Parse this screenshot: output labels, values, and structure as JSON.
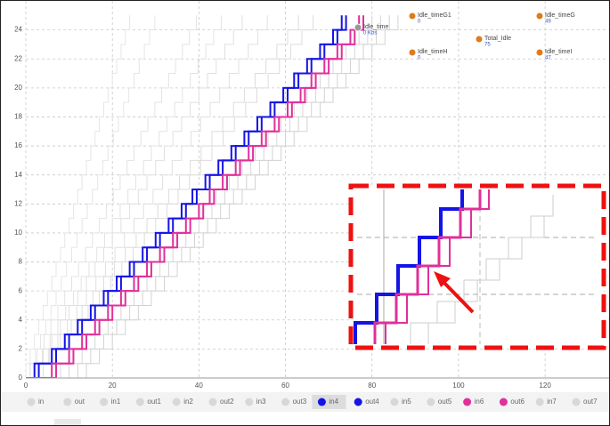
{
  "chart_data": {
    "type": "step",
    "levels": [
      1,
      2,
      3,
      4,
      5,
      6,
      7,
      8,
      9,
      10,
      11,
      12,
      13,
      14,
      15,
      16,
      17,
      18,
      19,
      20,
      21,
      22,
      23,
      24,
      25
    ],
    "xlim": [
      0,
      135
    ],
    "ylim": [
      0,
      26
    ],
    "xticks": [
      0,
      20,
      40,
      60,
      80,
      100,
      120
    ],
    "yticks": [
      0,
      2,
      4,
      6,
      8,
      10,
      12,
      14,
      16,
      18,
      20,
      22,
      24
    ],
    "grid": true,
    "annotations": [
      {
        "label": "Idle_time",
        "value": "0 Kbs"
      },
      {
        "label": "Idle_timeG1",
        "value": "0"
      },
      {
        "label": "Idle_timeG",
        "value": "49"
      },
      {
        "label": "Total_Idle",
        "value": "75"
      },
      {
        "label": "Idle_timeH",
        "value": "0"
      },
      {
        "label": "Idle_timeI",
        "value": "47"
      }
    ],
    "series": [
      {
        "name": "in",
        "color": "#e6e6e6",
        "x": [
          0,
          1,
          2,
          3,
          4,
          5,
          6,
          7,
          8,
          9,
          10,
          11,
          12,
          13,
          14,
          15,
          16,
          17,
          18,
          19,
          20,
          21,
          22,
          23,
          24
        ]
      },
      {
        "name": "out",
        "color": "#e6e6e6",
        "x": [
          1,
          2.2,
          3.4,
          4.6,
          5.8,
          7,
          8.2,
          9.4,
          10.6,
          11.8,
          13,
          14.2,
          15.4,
          16.6,
          17.8,
          19,
          20.2,
          21.4,
          22.6,
          23.8,
          25,
          26.2,
          27.4,
          28.6,
          29.8
        ]
      },
      {
        "name": "in1",
        "color": "#e3e3e3",
        "x": [
          1,
          2.6,
          4.2,
          5.8,
          7.4,
          9,
          10.6,
          12.2,
          13.8,
          15.4,
          17,
          18.6,
          20.2,
          21.8,
          23.4,
          25,
          26.6,
          28.2,
          29.8,
          31.4,
          33,
          34.6,
          36.2,
          37.8,
          39.4
        ]
      },
      {
        "name": "out1",
        "color": "#e3e3e3",
        "x": [
          2,
          3.8,
          5.6,
          7.4,
          9.2,
          11,
          12.8,
          14.6,
          16.4,
          18.2,
          20,
          21.8,
          23.6,
          25.4,
          27.2,
          29,
          30.8,
          32.6,
          34.4,
          36.2,
          38,
          39.8,
          41.6,
          43.4,
          45.2
        ]
      },
      {
        "name": "in2",
        "color": "#e0e0e0",
        "x": [
          2,
          4,
          6,
          8,
          10,
          12,
          14,
          16,
          18,
          20,
          22,
          24,
          26,
          28,
          30,
          32,
          34,
          36,
          38,
          40,
          42,
          44,
          46,
          48,
          50
        ]
      },
      {
        "name": "out2",
        "color": "#e0e0e0",
        "x": [
          3,
          5.2,
          7.4,
          9.6,
          11.8,
          14,
          16.2,
          18.4,
          20.6,
          22.8,
          25,
          27.2,
          29.4,
          31.6,
          33.8,
          36,
          38.2,
          40.4,
          42.6,
          44.8,
          47,
          49.2,
          51.4,
          53.6,
          55.8
        ]
      },
      {
        "name": "in3",
        "color": "#dcdcdc",
        "x": [
          3,
          5.5,
          8,
          10.5,
          13,
          15.5,
          18,
          20.5,
          23,
          25.5,
          28,
          30.5,
          33,
          35.5,
          38,
          40.5,
          43,
          45.5,
          48,
          50.5,
          53,
          55.5,
          58,
          60.5,
          63
        ]
      },
      {
        "name": "out3",
        "color": "#dcdcdc",
        "x": [
          4,
          6.6,
          9.2,
          11.8,
          14.4,
          17,
          19.6,
          22.2,
          24.8,
          27.4,
          30,
          32.6,
          35.2,
          37.8,
          40.4,
          43,
          45.6,
          48.2,
          50.8,
          53.4,
          56,
          58.6,
          61.2,
          63.8,
          66.4
        ]
      },
      {
        "name": "in4",
        "color": "#1414e6",
        "x": [
          2,
          6,
          9,
          12,
          15,
          18,
          21,
          24,
          27,
          30,
          33,
          36,
          38.5,
          41.5,
          44.5,
          47.5,
          50.5,
          53.5,
          56.5,
          59.5,
          62,
          65,
          68,
          71,
          73
        ]
      },
      {
        "name": "out4",
        "color": "#1414e6",
        "x": [
          3,
          7,
          10,
          13,
          16,
          19,
          22,
          25,
          28,
          31,
          34,
          37,
          39.5,
          42.5,
          45.5,
          48.5,
          51.5,
          54.5,
          57.5,
          60.5,
          63,
          66,
          69,
          72,
          74
        ]
      },
      {
        "name": "in5",
        "color": "#d6d6d6",
        "x": [
          8,
          11,
          14,
          17,
          20,
          23,
          26,
          29,
          32,
          35,
          38,
          41,
          44,
          47,
          50,
          53,
          56,
          59,
          62,
          65,
          68,
          71,
          74,
          77,
          80
        ]
      },
      {
        "name": "out5",
        "color": "#d6d6d6",
        "x": [
          10,
          13,
          16,
          19,
          22,
          25,
          28,
          31,
          34,
          37,
          40,
          43,
          46,
          49,
          52,
          55,
          58,
          61,
          64,
          67,
          70,
          73,
          76,
          79,
          82
        ]
      },
      {
        "name": "in6",
        "color": "#e0309a",
        "x": [
          6,
          10,
          13,
          16,
          19,
          22,
          25,
          28,
          31,
          34,
          37,
          40,
          42.5,
          45.5,
          48.5,
          51.5,
          54.5,
          57.5,
          60.5,
          63.5,
          66,
          69,
          72,
          75,
          77
        ]
      },
      {
        "name": "out6",
        "color": "#e0309a",
        "x": [
          7,
          11,
          14,
          17,
          20,
          23,
          26,
          29,
          32,
          35,
          38,
          41,
          43.5,
          46.5,
          49.5,
          52.5,
          55.5,
          58.5,
          61.5,
          64.5,
          67,
          70,
          73,
          76,
          78
        ]
      },
      {
        "name": "in7",
        "color": "#d2d2d2",
        "x": [
          12,
          15,
          18,
          21,
          24,
          27,
          30,
          33,
          36,
          39,
          42,
          45,
          48,
          51,
          54,
          57,
          60,
          63,
          66,
          69,
          72,
          75,
          78,
          81,
          84
        ]
      },
      {
        "name": "out7",
        "color": "#d2d2d2",
        "x": [
          14,
          17,
          20,
          23,
          26,
          29,
          32,
          35,
          38,
          41,
          44,
          47,
          50,
          53,
          56,
          59,
          62,
          65,
          68,
          71,
          74,
          77,
          80,
          83,
          86
        ]
      }
    ]
  }
}
